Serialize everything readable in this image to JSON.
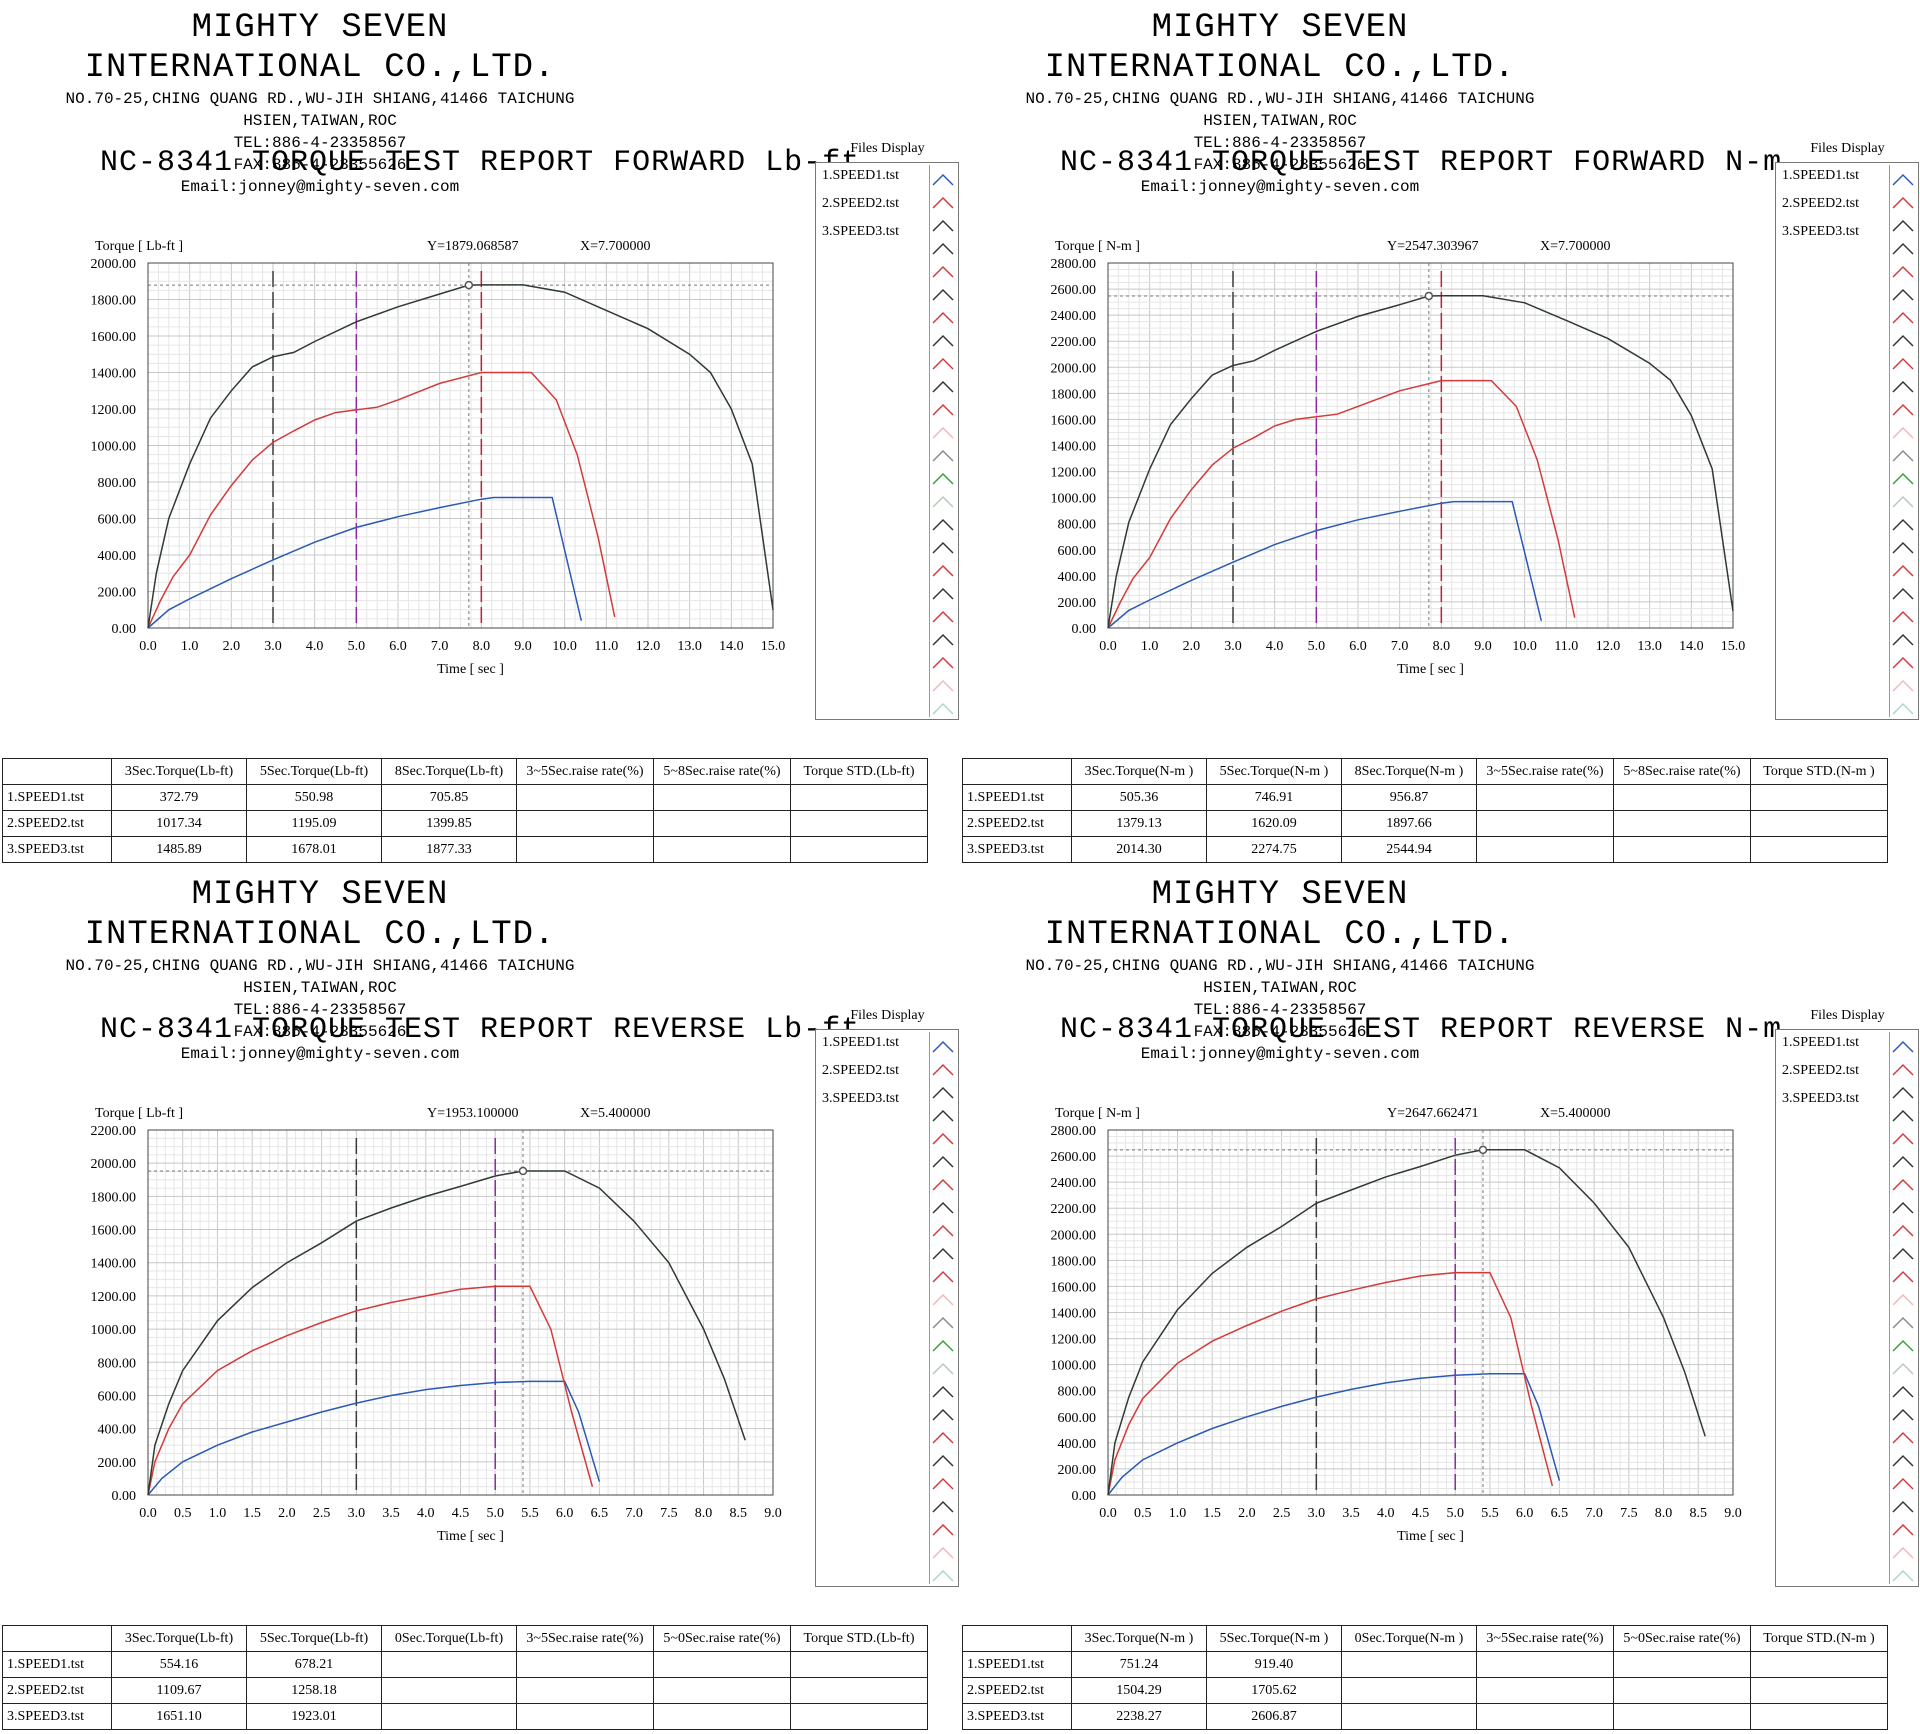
{
  "company": {
    "name": "MIGHTY SEVEN INTERNATIONAL CO.,LTD.",
    "address": "NO.70-25,CHING QUANG RD.,WU-JIH SHIANG,41466 TAICHUNG HSIEN,TAIWAN,ROC",
    "tel": "TEL:886-4-23358567",
    "fax": "FAX:886-4-23355626",
    "email": "Email:jonney@mighty-seven.com"
  },
  "files_display": {
    "title": "Files Display",
    "items": [
      "1.SPEED1.tst",
      "2.SPEED2.tst",
      "3.SPEED3.tst"
    ]
  },
  "colors": {
    "speed1": "#2a5ab5",
    "speed2": "#d43a3a",
    "speed3": "#2f3b2f",
    "marker3": "#3a3a3a",
    "marker5": "#8a2aa0",
    "marker8": "#c0203a",
    "cursor": "#777777"
  },
  "chart_data": [
    {
      "type": "line",
      "title": "NC-8341 TORQUE TEST REPORT FORWARD Lb-ft",
      "ylabel": "Torque [ Lb-ft ]",
      "xlabel": "Time [ sec ]",
      "cursor_readout": {
        "y_text": "Y=1879.068587",
        "x_text": "X=7.700000"
      },
      "cursor": {
        "x": 7.7,
        "y": 1879.07
      },
      "xlim": [
        0,
        15
      ],
      "ylim": [
        0,
        2000
      ],
      "xticks": [
        "0.0",
        "1.0",
        "2.0",
        "3.0",
        "4.0",
        "5.0",
        "6.0",
        "7.0",
        "8.0",
        "9.0",
        "10.0",
        "11.0",
        "12.0",
        "13.0",
        "14.0",
        "15.0"
      ],
      "yticks": [
        "0.00",
        "200.00",
        "400.00",
        "600.00",
        "800.00",
        "1000.00",
        "1200.00",
        "1400.00",
        "1600.00",
        "1800.00",
        "2000.00"
      ],
      "markers": [
        3,
        5,
        8
      ],
      "series": [
        {
          "name": "1.SPEED1.tst",
          "x": [
            0,
            0.5,
            1,
            2,
            3,
            4,
            5,
            6,
            7,
            8,
            8.3,
            9.7,
            10.4
          ],
          "y": [
            0,
            100,
            160,
            270,
            373,
            470,
            551,
            610,
            660,
            706,
            715,
            715,
            40
          ]
        },
        {
          "name": "2.SPEED2.tst",
          "x": [
            0,
            0.3,
            0.6,
            1,
            1.5,
            2,
            2.5,
            3,
            3.5,
            4,
            4.5,
            5,
            5.5,
            6,
            7,
            8,
            9.2,
            9.8,
            10.3,
            10.8,
            11.2
          ],
          "y": [
            0,
            150,
            280,
            400,
            620,
            780,
            920,
            1017,
            1080,
            1140,
            1180,
            1195,
            1210,
            1250,
            1340,
            1400,
            1400,
            1250,
            950,
            500,
            60
          ]
        },
        {
          "name": "3.SPEED3.tst",
          "x": [
            0,
            0.2,
            0.5,
            1,
            1.5,
            2,
            2.5,
            3,
            3.5,
            4,
            5,
            6,
            7,
            7.7,
            8,
            9,
            10,
            11,
            12,
            13,
            13.5,
            14,
            14.5,
            15
          ],
          "y": [
            0,
            300,
            600,
            900,
            1150,
            1300,
            1430,
            1486,
            1510,
            1570,
            1678,
            1760,
            1830,
            1879,
            1880,
            1880,
            1840,
            1740,
            1640,
            1500,
            1400,
            1200,
            900,
            100
          ]
        }
      ]
    },
    {
      "type": "line",
      "title": "NC-8341 TORQUE TEST REPORT FORWARD N-m",
      "ylabel": "Torque [ N-m ]",
      "xlabel": "Time [ sec ]",
      "cursor_readout": {
        "y_text": "Y=2547.303967",
        "x_text": "X=7.700000"
      },
      "cursor": {
        "x": 7.7,
        "y": 2547.3
      },
      "xlim": [
        0,
        15
      ],
      "ylim": [
        0,
        2800
      ],
      "xticks": [
        "0.0",
        "1.0",
        "2.0",
        "3.0",
        "4.0",
        "5.0",
        "6.0",
        "7.0",
        "8.0",
        "9.0",
        "10.0",
        "11.0",
        "12.0",
        "13.0",
        "14.0",
        "15.0"
      ],
      "yticks": [
        "0.00",
        "200.00",
        "400.00",
        "600.00",
        "800.00",
        "1000.00",
        "1200.00",
        "1400.00",
        "1600.00",
        "1800.00",
        "2000.00",
        "2200.00",
        "2400.00",
        "2600.00",
        "2800.00"
      ],
      "markers": [
        3,
        5,
        8
      ],
      "series": [
        {
          "name": "1.SPEED1.tst",
          "x": [
            0,
            0.5,
            1,
            2,
            3,
            4,
            5,
            6,
            7,
            8,
            8.3,
            9.7,
            10.4
          ],
          "y": [
            0,
            135,
            215,
            365,
            505,
            640,
            747,
            830,
            895,
            957,
            970,
            970,
            55
          ]
        },
        {
          "name": "2.SPEED2.tst",
          "x": [
            0,
            0.3,
            0.6,
            1,
            1.5,
            2,
            2.5,
            3,
            3.5,
            4,
            4.5,
            5,
            5.5,
            6,
            7,
            8,
            9.2,
            9.8,
            10.3,
            10.8,
            11.2
          ],
          "y": [
            0,
            200,
            380,
            540,
            840,
            1060,
            1250,
            1379,
            1460,
            1550,
            1600,
            1620,
            1640,
            1700,
            1820,
            1898,
            1898,
            1700,
            1290,
            680,
            80
          ]
        },
        {
          "name": "3.SPEED3.tst",
          "x": [
            0,
            0.2,
            0.5,
            1,
            1.5,
            2,
            2.5,
            3,
            3.5,
            4,
            5,
            6,
            7,
            7.7,
            8,
            9,
            10,
            11,
            12,
            13,
            13.5,
            14,
            14.5,
            15
          ],
          "y": [
            0,
            400,
            810,
            1220,
            1560,
            1760,
            1940,
            2014,
            2050,
            2130,
            2275,
            2390,
            2480,
            2547,
            2548,
            2548,
            2495,
            2360,
            2220,
            2030,
            1900,
            1630,
            1220,
            130
          ]
        }
      ]
    },
    {
      "type": "line",
      "title": "NC-8341 TORQUE TEST REPORT REVERSE Lb-ft",
      "ylabel": "Torque [ Lb-ft ]",
      "xlabel": "Time [ sec ]",
      "cursor_readout": {
        "y_text": "Y=1953.100000",
        "x_text": "X=5.400000"
      },
      "cursor": {
        "x": 5.4,
        "y": 1953.1
      },
      "xlim": [
        0,
        9
      ],
      "ylim": [
        0,
        2200
      ],
      "xticks": [
        "0.0",
        "0.5",
        "1.0",
        "1.5",
        "2.0",
        "2.5",
        "3.0",
        "3.5",
        "4.0",
        "4.5",
        "5.0",
        "5.5",
        "6.0",
        "6.5",
        "7.0",
        "7.5",
        "8.0",
        "8.5",
        "9.0"
      ],
      "yticks": [
        "0.00",
        "200.00",
        "400.00",
        "600.00",
        "800.00",
        "1000.00",
        "1200.00",
        "1400.00",
        "1600.00",
        "1800.00",
        "2000.00",
        "2200.00"
      ],
      "markers": [
        3,
        5
      ],
      "series": [
        {
          "name": "1.SPEED1.tst",
          "x": [
            0,
            0.2,
            0.5,
            1,
            1.5,
            2,
            2.5,
            3,
            3.5,
            4,
            4.5,
            5,
            5.5,
            6,
            6.2,
            6.5
          ],
          "y": [
            0,
            100,
            200,
            300,
            380,
            440,
            500,
            554,
            600,
            635,
            660,
            678,
            685,
            685,
            500,
            80
          ]
        },
        {
          "name": "2.SPEED2.tst",
          "x": [
            0,
            0.1,
            0.3,
            0.5,
            1,
            1.5,
            2,
            2.5,
            3,
            3.5,
            4,
            4.5,
            5,
            5.5,
            5.8,
            6.1,
            6.4
          ],
          "y": [
            0,
            200,
            400,
            550,
            750,
            870,
            960,
            1040,
            1110,
            1160,
            1200,
            1240,
            1258,
            1258,
            1000,
            500,
            50
          ]
        },
        {
          "name": "3.SPEED3.tst",
          "x": [
            0,
            0.1,
            0.3,
            0.5,
            1,
            1.5,
            2,
            2.5,
            3,
            3.5,
            4,
            4.5,
            5,
            5.4,
            6,
            6.5,
            7,
            7.5,
            8,
            8.3,
            8.6
          ],
          "y": [
            0,
            300,
            550,
            750,
            1050,
            1250,
            1400,
            1520,
            1651,
            1730,
            1800,
            1860,
            1923,
            1953,
            1953,
            1850,
            1650,
            1400,
            1000,
            700,
            330
          ]
        }
      ]
    },
    {
      "type": "line",
      "title": "NC-8341 TORQUE TEST REPORT REVERSE N-m",
      "ylabel": "Torque [ N-m ]",
      "xlabel": "Time [ sec ]",
      "cursor_readout": {
        "y_text": "Y=2647.662471",
        "x_text": "X=5.400000"
      },
      "cursor": {
        "x": 5.4,
        "y": 2647.66
      },
      "xlim": [
        0,
        9
      ],
      "ylim": [
        0,
        2800
      ],
      "xticks": [
        "0.0",
        "0.5",
        "1.0",
        "1.5",
        "2.0",
        "2.5",
        "3.0",
        "3.5",
        "4.0",
        "4.5",
        "5.0",
        "5.5",
        "6.0",
        "6.5",
        "7.0",
        "7.5",
        "8.0",
        "8.5",
        "9.0"
      ],
      "yticks": [
        "0.00",
        "200.00",
        "400.00",
        "600.00",
        "800.00",
        "1000.00",
        "1200.00",
        "1400.00",
        "1600.00",
        "1800.00",
        "2000.00",
        "2200.00",
        "2400.00",
        "2600.00",
        "2800.00"
      ],
      "markers": [
        3,
        5
      ],
      "series": [
        {
          "name": "1.SPEED1.tst",
          "x": [
            0,
            0.2,
            0.5,
            1,
            1.5,
            2,
            2.5,
            3,
            3.5,
            4,
            4.5,
            5,
            5.5,
            6,
            6.2,
            6.5
          ],
          "y": [
            0,
            135,
            270,
            400,
            510,
            600,
            680,
            751,
            810,
            860,
            895,
            919,
            930,
            930,
            680,
            110
          ]
        },
        {
          "name": "2.SPEED2.tst",
          "x": [
            0,
            0.1,
            0.3,
            0.5,
            1,
            1.5,
            2,
            2.5,
            3,
            3.5,
            4,
            4.5,
            5,
            5.5,
            5.8,
            6.1,
            6.4
          ],
          "y": [
            0,
            270,
            540,
            740,
            1010,
            1180,
            1300,
            1410,
            1504,
            1570,
            1630,
            1680,
            1706,
            1706,
            1360,
            680,
            70
          ]
        },
        {
          "name": "3.SPEED3.tst",
          "x": [
            0,
            0.1,
            0.3,
            0.5,
            1,
            1.5,
            2,
            2.5,
            3,
            3.5,
            4,
            4.5,
            5,
            5.4,
            6,
            6.5,
            7,
            7.5,
            8,
            8.3,
            8.6
          ],
          "y": [
            0,
            400,
            750,
            1020,
            1420,
            1700,
            1900,
            2060,
            2238,
            2340,
            2440,
            2520,
            2607,
            2648,
            2648,
            2510,
            2240,
            1900,
            1360,
            950,
            450
          ]
        }
      ]
    }
  ],
  "tables": [
    {
      "headers": [
        "",
        "3Sec.Torque(Lb-ft)",
        "5Sec.Torque(Lb-ft)",
        "8Sec.Torque(Lb-ft)",
        "3~5Sec.raise rate(%)",
        "5~8Sec.raise rate(%)",
        "Torque STD.(Lb-ft)"
      ],
      "rows": [
        [
          "1.SPEED1.tst",
          "372.79",
          "550.98",
          "705.85",
          "",
          "",
          ""
        ],
        [
          "2.SPEED2.tst",
          "1017.34",
          "1195.09",
          "1399.85",
          "",
          "",
          ""
        ],
        [
          "3.SPEED3.tst",
          "1485.89",
          "1678.01",
          "1877.33",
          "",
          "",
          ""
        ]
      ]
    },
    {
      "headers": [
        "",
        "3Sec.Torque(N-m )",
        "5Sec.Torque(N-m )",
        "8Sec.Torque(N-m )",
        "3~5Sec.raise rate(%)",
        "5~8Sec.raise rate(%)",
        "Torque STD.(N-m )"
      ],
      "rows": [
        [
          "1.SPEED1.tst",
          "505.36",
          "746.91",
          "956.87",
          "",
          "",
          ""
        ],
        [
          "2.SPEED2.tst",
          "1379.13",
          "1620.09",
          "1897.66",
          "",
          "",
          ""
        ],
        [
          "3.SPEED3.tst",
          "2014.30",
          "2274.75",
          "2544.94",
          "",
          "",
          ""
        ]
      ]
    },
    {
      "headers": [
        "",
        "3Sec.Torque(Lb-ft)",
        "5Sec.Torque(Lb-ft)",
        "0Sec.Torque(Lb-ft)",
        "3~5Sec.raise rate(%)",
        "5~0Sec.raise rate(%)",
        "Torque STD.(Lb-ft)"
      ],
      "rows": [
        [
          "1.SPEED1.tst",
          "554.16",
          "678.21",
          "",
          "",
          "",
          ""
        ],
        [
          "2.SPEED2.tst",
          "1109.67",
          "1258.18",
          "",
          "",
          "",
          ""
        ],
        [
          "3.SPEED3.tst",
          "1651.10",
          "1923.01",
          "",
          "",
          "",
          ""
        ]
      ]
    },
    {
      "headers": [
        "",
        "3Sec.Torque(N-m )",
        "5Sec.Torque(N-m )",
        "0Sec.Torque(N-m )",
        "3~5Sec.raise rate(%)",
        "5~0Sec.raise rate(%)",
        "Torque STD.(N-m )"
      ],
      "rows": [
        [
          "1.SPEED1.tst",
          "751.24",
          "919.40",
          "",
          "",
          "",
          ""
        ],
        [
          "2.SPEED2.tst",
          "1504.29",
          "1705.62",
          "",
          "",
          "",
          ""
        ],
        [
          "3.SPEED3.tst",
          "2238.27",
          "2606.87",
          "",
          "",
          "",
          ""
        ]
      ]
    }
  ]
}
